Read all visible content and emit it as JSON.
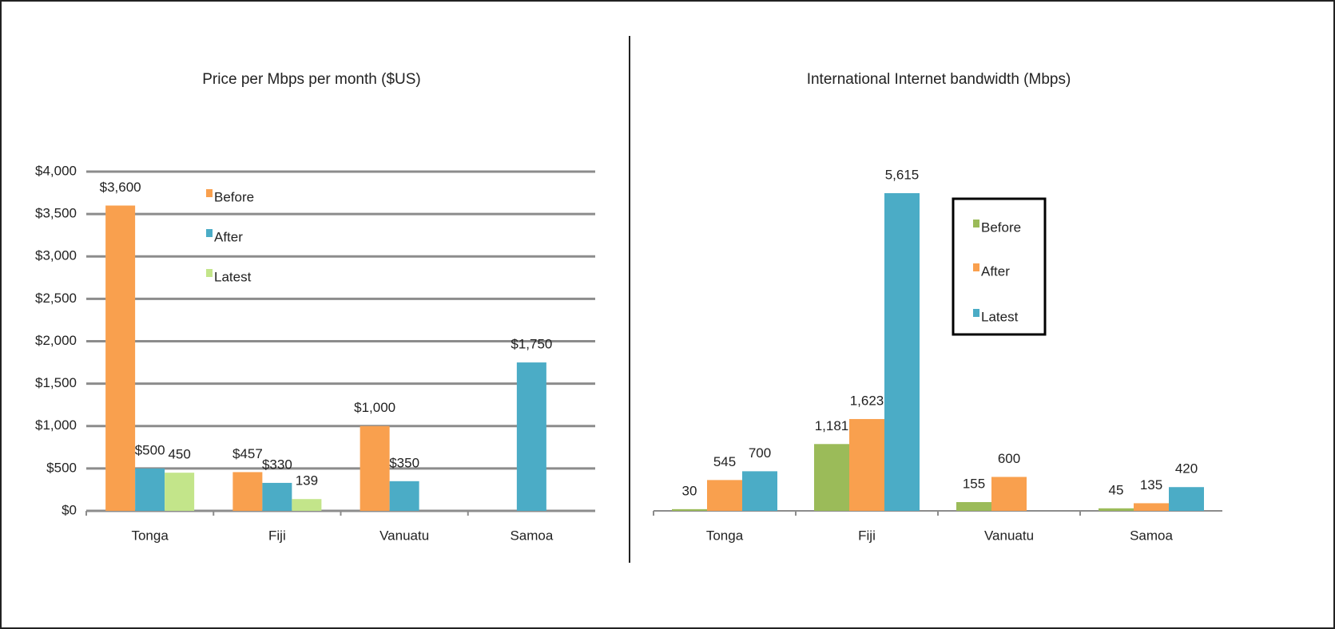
{
  "chart_data": [
    {
      "type": "bar",
      "title": "Price per Mbps per month ($US)",
      "categories": [
        "Tonga",
        "Fiji",
        "Vanuatu",
        "Samoa"
      ],
      "series": [
        {
          "name": "Before",
          "color": "#f9a04e",
          "values": [
            3600,
            457,
            1000,
            null
          ],
          "value_labels": [
            "$3,600",
            "$457",
            "$1,000",
            null
          ]
        },
        {
          "name": "After",
          "color": "#4bacc6",
          "values": [
            500,
            330,
            350,
            1750
          ],
          "value_labels": [
            "$500",
            "$330",
            "$350",
            "$1,750"
          ]
        },
        {
          "name": "Latest",
          "color": "#c3e58a",
          "values": [
            450,
            139,
            null,
            null
          ],
          "value_labels": [
            "450",
            "139",
            null,
            null
          ]
        }
      ],
      "ylim": [
        0,
        4000
      ],
      "yticks": [
        {
          "value": 0,
          "label": "$0"
        },
        {
          "value": 500,
          "label": "$500"
        },
        {
          "value": 1000,
          "label": "$1,000"
        },
        {
          "value": 1500,
          "label": "$1,500"
        },
        {
          "value": 2000,
          "label": "$2,000"
        },
        {
          "value": 2500,
          "label": "$2,500"
        },
        {
          "value": 3000,
          "label": "$3,000"
        },
        {
          "value": 3500,
          "label": "$3,500"
        },
        {
          "value": 4000,
          "label": "$4,000"
        }
      ],
      "grid": true
    },
    {
      "type": "bar",
      "title": "International Internet bandwidth (Mbps)",
      "categories": [
        "Tonga",
        "Fiji",
        "Vanuatu",
        "Samoa"
      ],
      "series": [
        {
          "name": "Before",
          "color": "#9bbb59",
          "values": [
            30,
            1181,
            155,
            45
          ],
          "value_labels": [
            "30",
            "1,181",
            "155",
            "45"
          ]
        },
        {
          "name": "After",
          "color": "#f9a04e",
          "values": [
            545,
            1623,
            600,
            135
          ],
          "value_labels": [
            "545",
            "1,623",
            "600",
            "135"
          ]
        },
        {
          "name": "Latest",
          "color": "#4bacc6",
          "values": [
            700,
            5615,
            null,
            420
          ],
          "value_labels": [
            "700",
            "5,615",
            null,
            "420"
          ]
        }
      ],
      "grid": false
    }
  ]
}
